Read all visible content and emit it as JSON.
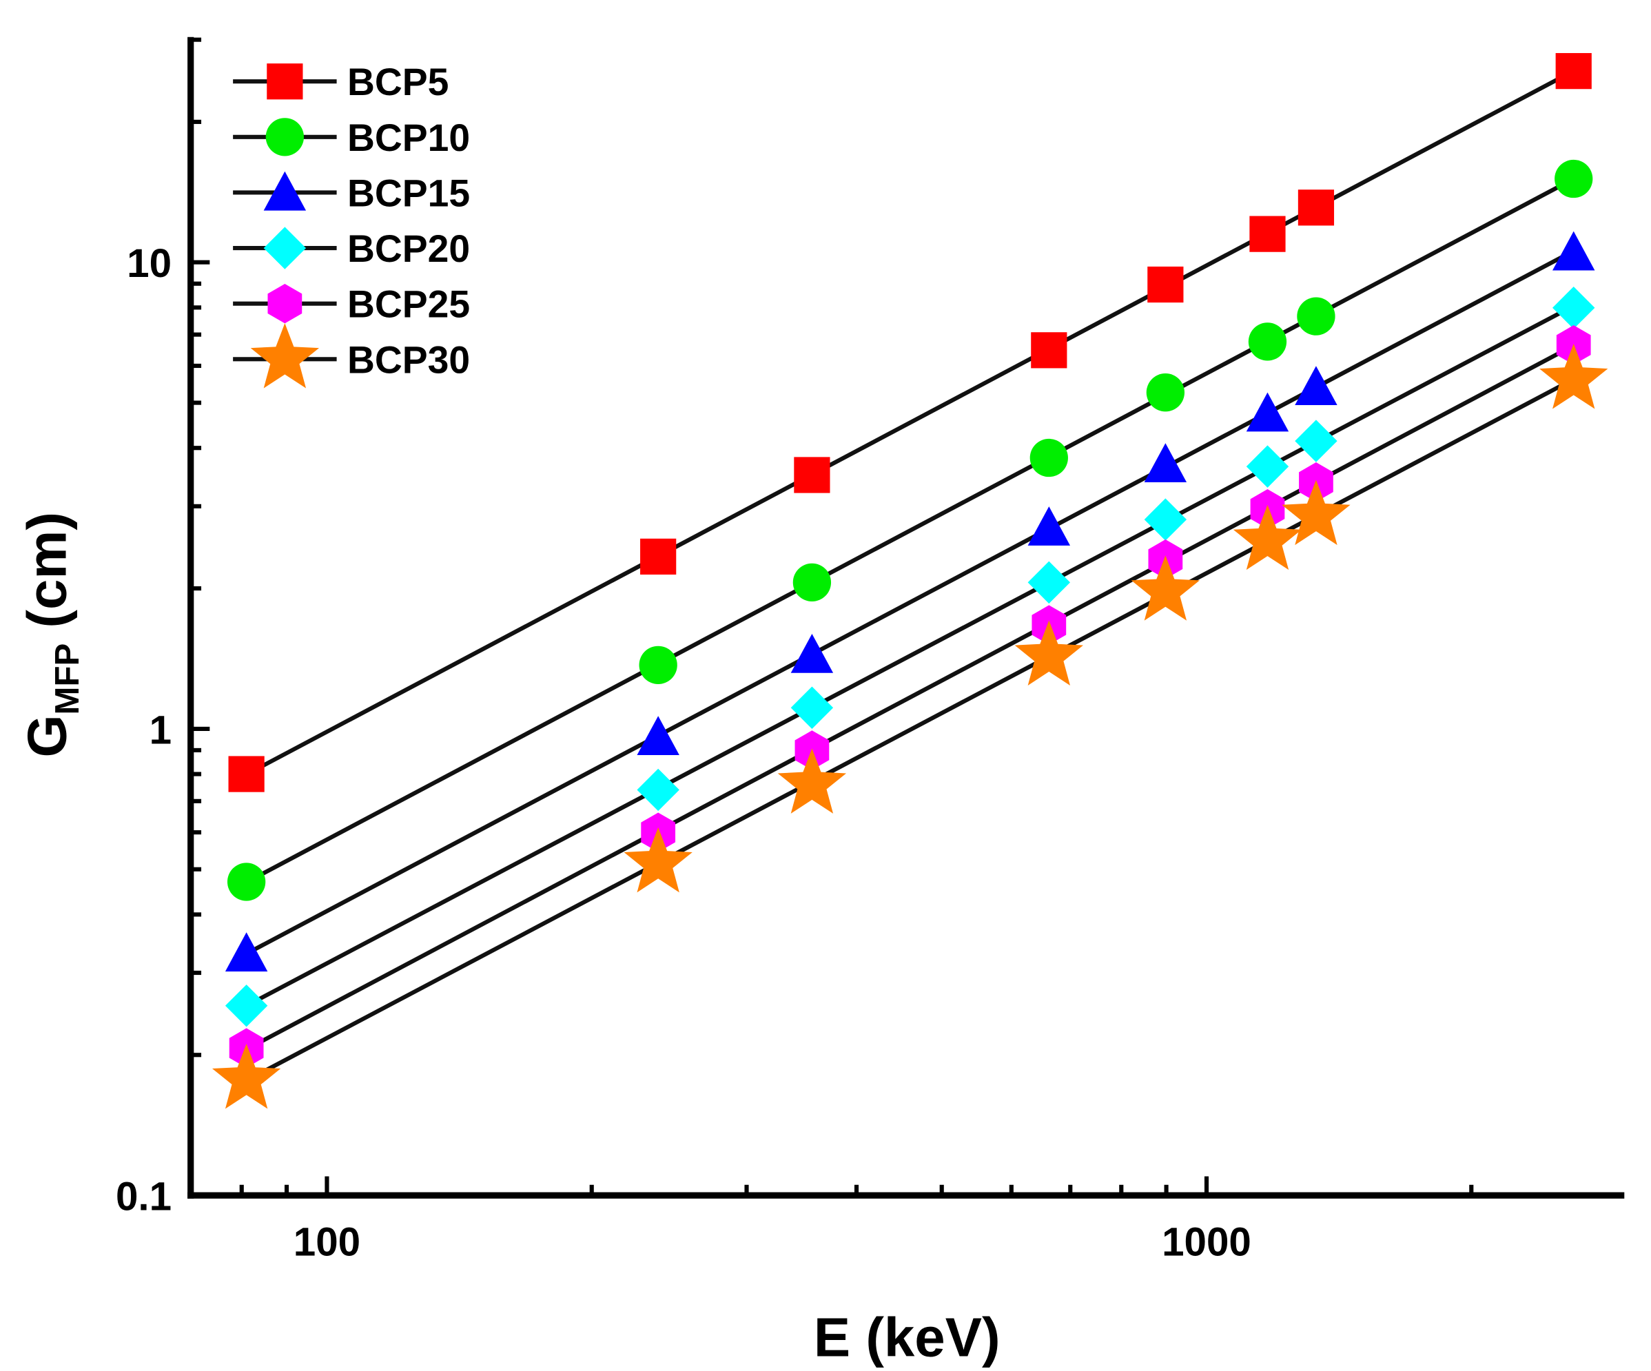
{
  "chart_data": {
    "type": "scatter",
    "title": "",
    "xlabel": "E (keV)",
    "ylabel": {
      "main": "G",
      "sub": "MFP",
      "unit": "(cm)"
    },
    "xscale": "log",
    "yscale": "log",
    "xlim": [
      70,
      2985
    ],
    "ylim": [
      0.1,
      30.4
    ],
    "x_ticks": [
      {
        "value": 100,
        "label": "100"
      },
      {
        "value": 1000,
        "label": "1000"
      }
    ],
    "y_ticks": [
      {
        "value": 0.1,
        "label": "0.1"
      },
      {
        "value": 1,
        "label": "1"
      },
      {
        "value": 10,
        "label": "10"
      }
    ],
    "grid": false,
    "legend_position": "top-left",
    "x": [
      81,
      238,
      356,
      662,
      898,
      1173,
      1332,
      2614
    ],
    "series": [
      {
        "name": "BCP5",
        "marker": "square",
        "color": "#ff0000",
        "values": [
          0.8,
          2.34,
          3.5,
          6.48,
          8.96,
          11.5,
          13.1,
          25.7
        ]
      },
      {
        "name": "BCP10",
        "marker": "circle",
        "color": "#00ee00",
        "values": [
          0.47,
          1.37,
          2.06,
          3.81,
          5.26,
          6.76,
          7.66,
          15.1
        ]
      },
      {
        "name": "BCP15",
        "marker": "triangle",
        "color": "#0000ff",
        "values": [
          0.33,
          0.96,
          1.44,
          2.7,
          3.69,
          4.74,
          5.4,
          10.5
        ]
      },
      {
        "name": "BCP20",
        "marker": "diamond",
        "color": "#00ffff",
        "values": [
          0.255,
          0.74,
          1.11,
          2.06,
          2.81,
          3.65,
          4.14,
          7.99
        ]
      },
      {
        "name": "BCP25",
        "marker": "hexagon",
        "color": "#ff00ff",
        "values": [
          0.207,
          0.6,
          0.9,
          1.67,
          2.31,
          2.96,
          3.38,
          6.65
        ]
      },
      {
        "name": "BCP30",
        "marker": "star",
        "color": "#ff8000",
        "values": [
          0.177,
          0.515,
          0.76,
          1.43,
          1.97,
          2.53,
          2.86,
          5.6
        ]
      }
    ]
  }
}
